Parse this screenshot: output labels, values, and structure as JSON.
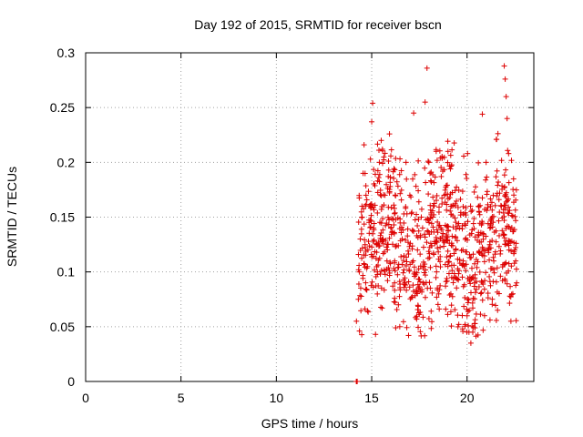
{
  "chart_data": {
    "type": "scatter",
    "title": "Day 192 of 2015, SRMTID for receiver bscn",
    "xlabel": "GPS time / hours",
    "ylabel": "SRMTID / TECUs",
    "xlim": [
      0,
      23.5
    ],
    "ylim": [
      0,
      0.3
    ],
    "x_ticks": [
      0,
      5,
      10,
      15,
      20
    ],
    "x_tick_labels": [
      "0",
      "5",
      "10",
      "15",
      "20"
    ],
    "y_ticks": [
      0,
      0.05,
      0.1,
      0.15,
      0.2,
      0.25,
      0.3
    ],
    "y_tick_labels": [
      "0",
      "0.05",
      "0.1",
      "0.15",
      "0.2",
      "0.25",
      "0.3"
    ],
    "grid": true,
    "marker": "plus",
    "marker_color": "#dd0000",
    "series": [
      {
        "name": "SRMTID",
        "color": "#dd0000",
        "x_range": [
          14.1,
          22.6
        ],
        "value_range": [
          0.0,
          0.29
        ],
        "zero_cluster_x": 14.2,
        "points": [
          [
            14.2,
            0.0
          ],
          [
            14.22,
            0.0
          ],
          [
            14.24,
            0.0
          ],
          [
            14.2,
            0.055
          ],
          [
            14.3,
            0.075
          ],
          [
            14.35,
            0.1
          ],
          [
            14.4,
            0.13
          ],
          [
            14.5,
            0.15
          ],
          [
            14.55,
            0.19
          ],
          [
            14.6,
            0.216
          ],
          [
            14.7,
            0.17
          ],
          [
            14.8,
            0.12
          ],
          [
            14.9,
            0.16
          ],
          [
            15.0,
            0.237
          ],
          [
            15.05,
            0.254
          ],
          [
            15.1,
            0.14
          ],
          [
            15.2,
            0.043
          ],
          [
            15.3,
            0.1
          ],
          [
            15.4,
            0.2
          ],
          [
            15.5,
            0.22
          ],
          [
            15.6,
            0.13
          ],
          [
            15.8,
            0.11
          ],
          [
            16.0,
            0.14
          ],
          [
            16.2,
            0.09
          ],
          [
            16.4,
            0.07
          ],
          [
            16.6,
            0.13
          ],
          [
            16.8,
            0.2
          ],
          [
            17.0,
            0.17
          ],
          [
            17.2,
            0.245
          ],
          [
            17.4,
            0.12
          ],
          [
            17.6,
            0.15
          ],
          [
            17.8,
            0.255
          ],
          [
            17.9,
            0.286
          ],
          [
            18.0,
            0.2
          ],
          [
            18.2,
            0.15
          ],
          [
            18.4,
            0.1
          ],
          [
            18.6,
            0.13
          ],
          [
            18.8,
            0.17
          ],
          [
            19.0,
            0.21
          ],
          [
            19.2,
            0.16
          ],
          [
            19.4,
            0.12
          ],
          [
            19.6,
            0.14
          ],
          [
            19.8,
            0.11
          ],
          [
            20.0,
            0.06
          ],
          [
            20.1,
            0.045
          ],
          [
            20.2,
            0.035
          ],
          [
            20.3,
            0.045
          ],
          [
            20.4,
            0.09
          ],
          [
            20.6,
            0.16
          ],
          [
            20.8,
            0.244
          ],
          [
            21.0,
            0.2
          ],
          [
            21.2,
            0.14
          ],
          [
            21.4,
            0.11
          ],
          [
            21.6,
            0.065
          ],
          [
            21.8,
            0.16
          ],
          [
            21.95,
            0.288
          ],
          [
            22.0,
            0.276
          ],
          [
            22.05,
            0.26
          ],
          [
            22.1,
            0.24
          ],
          [
            22.2,
            0.12
          ],
          [
            22.3,
            0.055
          ],
          [
            22.4,
            0.08
          ],
          [
            22.5,
            0.12
          ],
          [
            22.6,
            0.09
          ]
        ]
      }
    ]
  }
}
